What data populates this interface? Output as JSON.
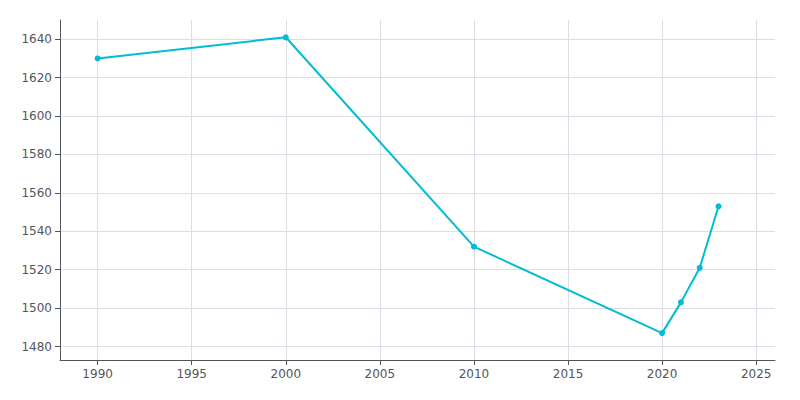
{
  "chart_data": {
    "type": "line",
    "x": [
      1990,
      2000,
      2010,
      2020,
      2021,
      2022,
      2023
    ],
    "values": [
      1630,
      1641,
      1532,
      1487,
      1503,
      1521,
      1553
    ],
    "color": "#00bcd4",
    "marker": "circle",
    "xlim": [
      1988,
      2026
    ],
    "xticks": [
      1990,
      1995,
      2000,
      2005,
      2010,
      2015,
      2020,
      2025
    ],
    "ylim": [
      1473,
      1650
    ],
    "yticks": [
      1480,
      1500,
      1520,
      1540,
      1560,
      1580,
      1600,
      1620,
      1640
    ],
    "grid": true
  }
}
